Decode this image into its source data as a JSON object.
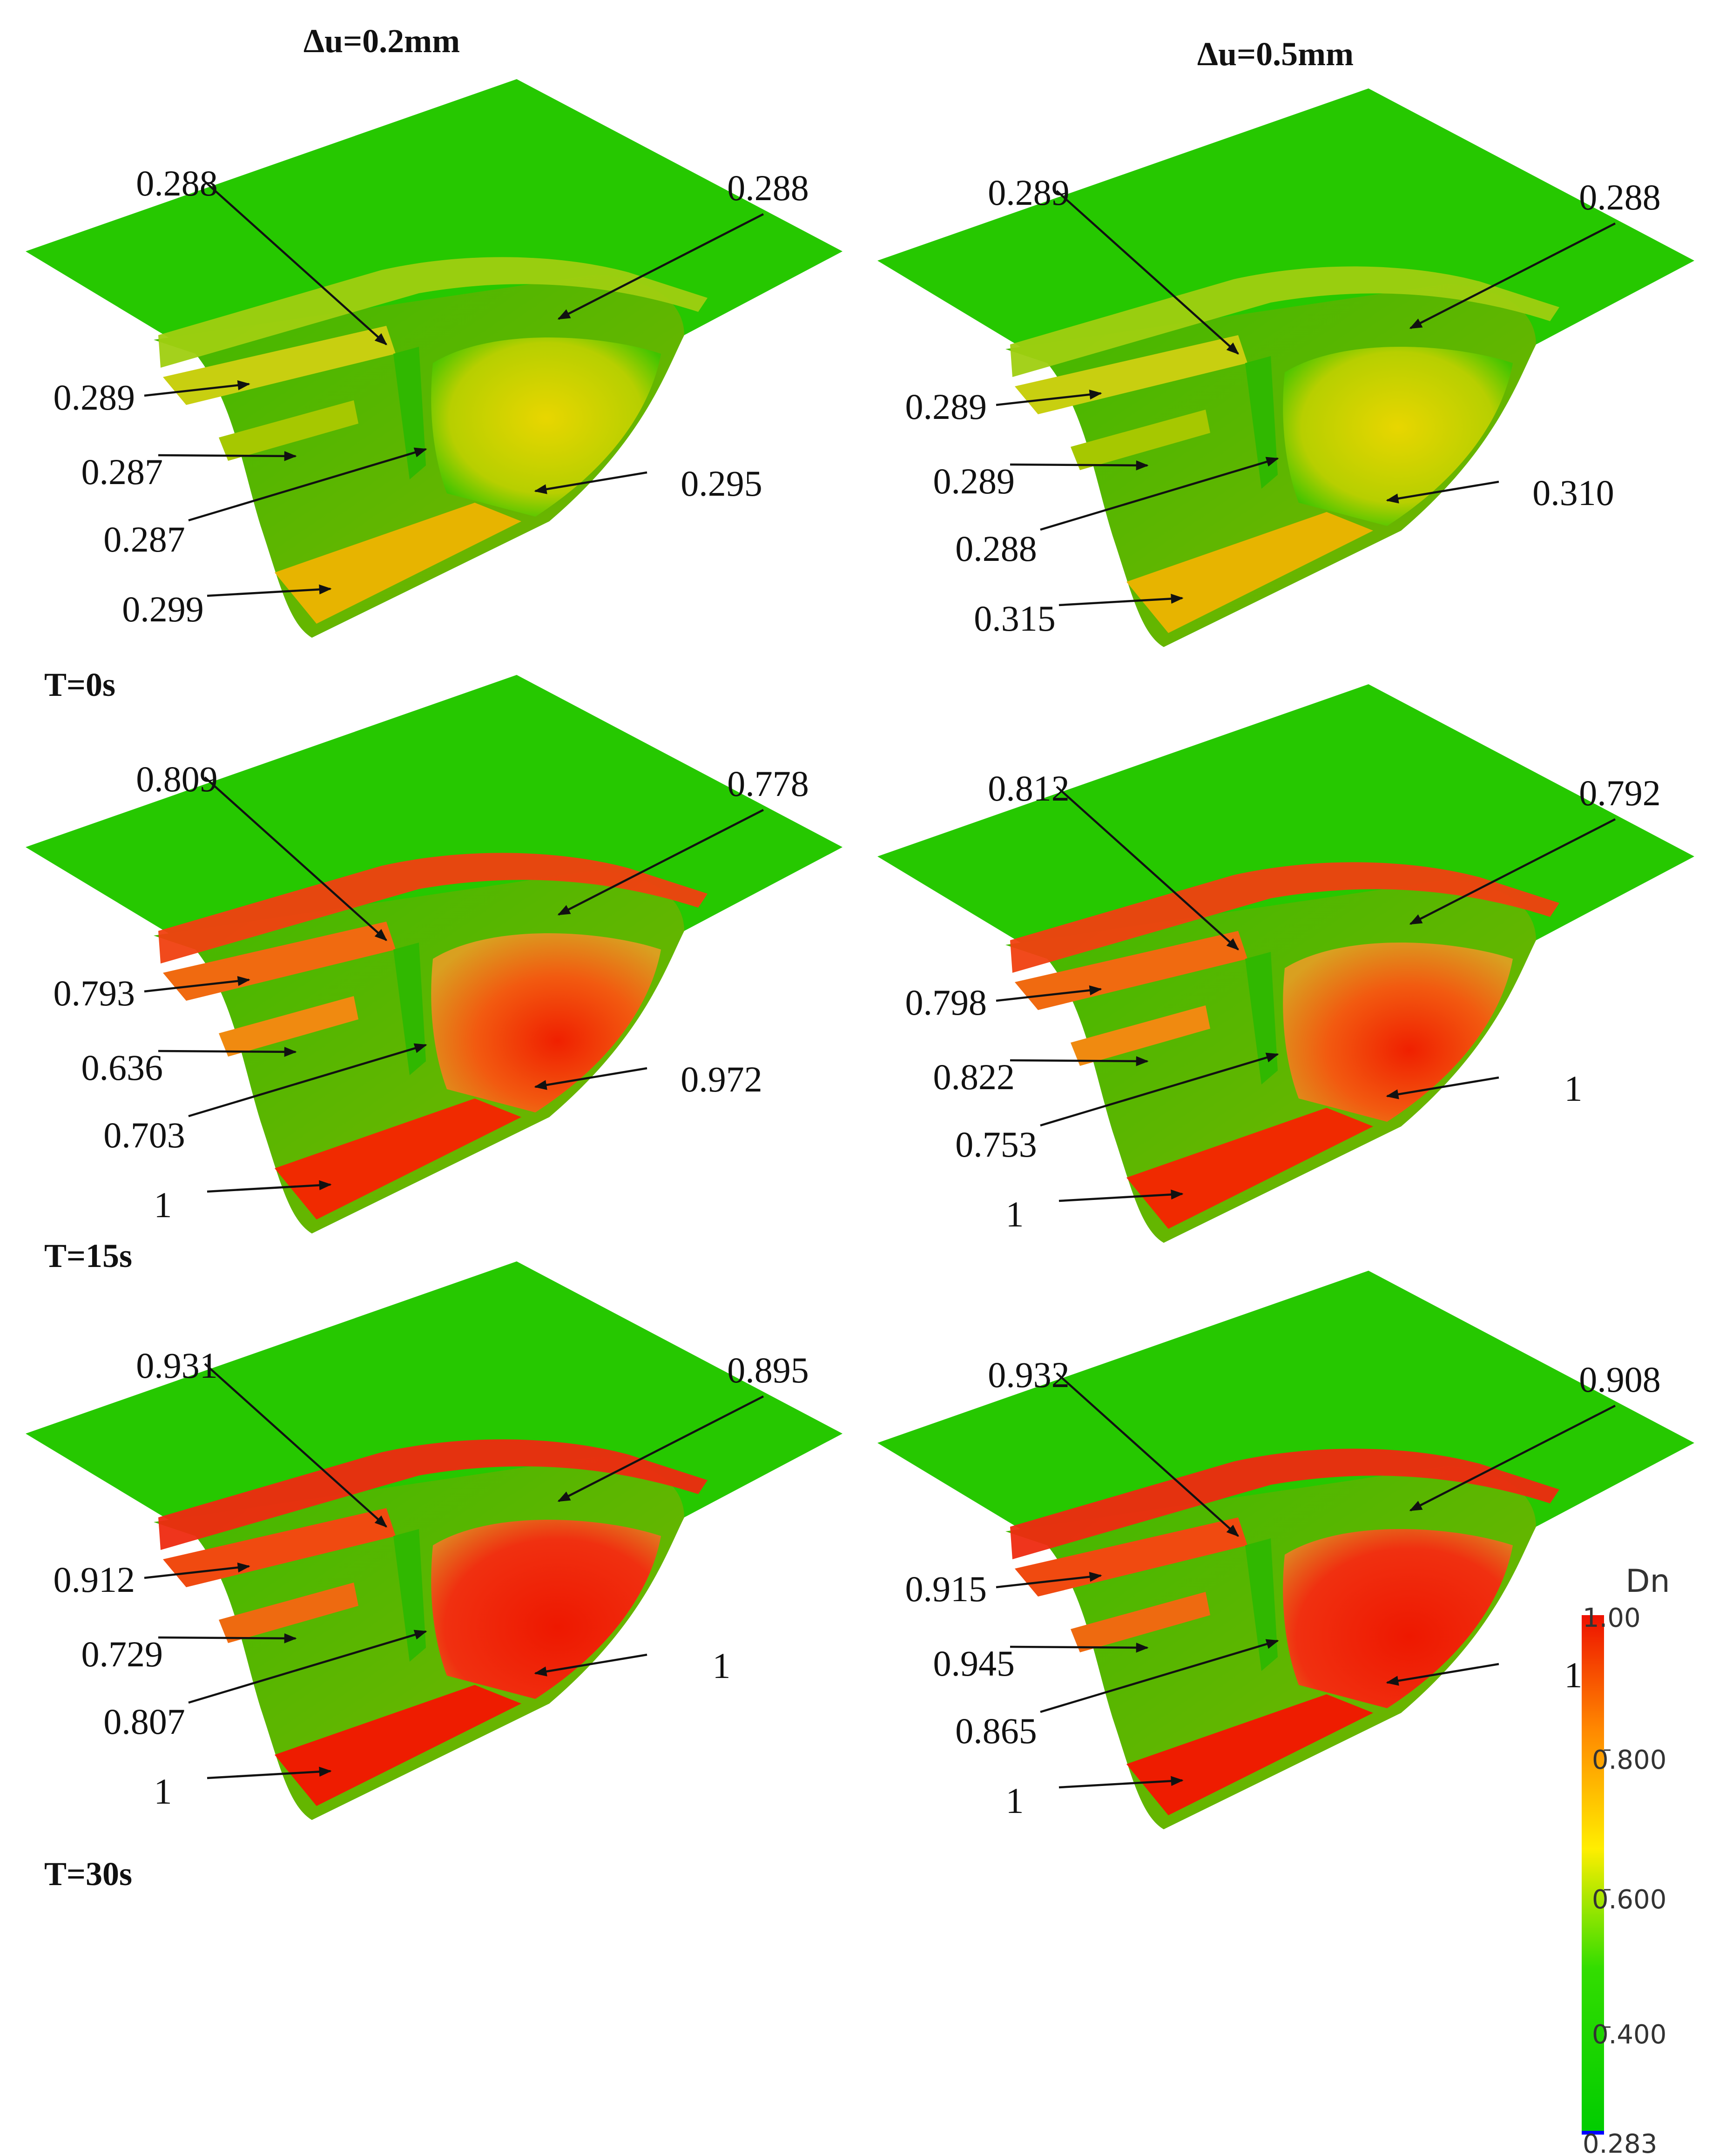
{
  "columns": [
    {
      "key": "du02",
      "header": "Δu=0.2mm"
    },
    {
      "key": "du05",
      "header": "Δu=0.5mm"
    }
  ],
  "rows": [
    {
      "key": "t0",
      "time_label": "T=0s",
      "level": "low"
    },
    {
      "key": "t15",
      "time_label": "T=15s",
      "level": "mid"
    },
    {
      "key": "t30",
      "time_label": "T=30s",
      "level": "high"
    }
  ],
  "panels": {
    "t0_du02": {
      "a": "0.288",
      "b": "0.288",
      "c": "0.289",
      "d": "0.287",
      "e": "0.287",
      "f": "0.295",
      "g": "0.299"
    },
    "t0_du05": {
      "a": "0.289",
      "b": "0.288",
      "c": "0.289",
      "d": "0.289",
      "e": "0.288",
      "f": "0.310",
      "g": "0.315"
    },
    "t15_du02": {
      "a": "0.809",
      "b": "0.778",
      "c": "0.793",
      "d": "0.636",
      "e": "0.703",
      "f": "0.972",
      "g": "1"
    },
    "t15_du05": {
      "a": "0.812",
      "b": "0.792",
      "c": "0.798",
      "d": "0.822",
      "e": "0.753",
      "f": "1",
      "g": "1"
    },
    "t30_du02": {
      "a": "0.931",
      "b": "0.895",
      "c": "0.912",
      "d": "0.729",
      "e": "0.807",
      "f": "1",
      "g": "1"
    },
    "t30_du05": {
      "a": "0.932",
      "b": "0.908",
      "c": "0.915",
      "d": "0.945",
      "e": "0.865",
      "f": "1",
      "g": "1"
    }
  },
  "colorbar": {
    "title": "Dn",
    "ticks": [
      "1.00",
      "0.800",
      "0.600",
      "0.400",
      "0.283"
    ],
    "colors": [
      "#00cc00",
      "#7fd400",
      "#ffee00",
      "#ff8800",
      "#ee1100"
    ]
  }
}
